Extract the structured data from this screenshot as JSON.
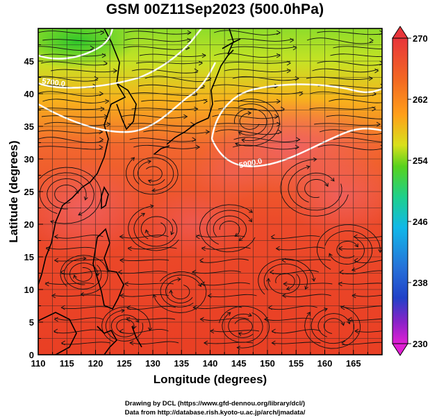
{
  "title": "GSM 00Z11Sep2023 (500.0hPa)",
  "xaxis": {
    "label": "Longitude (degrees)",
    "range": [
      110,
      170
    ],
    "ticks": [
      110,
      115,
      120,
      125,
      130,
      135,
      140,
      145,
      150,
      155,
      160,
      165
    ]
  },
  "yaxis": {
    "label": "Latitude (degrees)",
    "range": [
      0,
      50
    ],
    "ticks": [
      0,
      5,
      10,
      15,
      20,
      25,
      30,
      35,
      40,
      45
    ]
  },
  "colorbar": {
    "range": [
      230,
      270
    ],
    "tick_labels": [
      "270",
      "262",
      "254",
      "246",
      "238",
      "230"
    ],
    "colors": {
      "270": "#e8353a",
      "262": "#ff9f1a",
      "254": "#58d21d",
      "246": "#11b8e8",
      "238": "#2141c8",
      "230": "#e01fd4"
    }
  },
  "contours": [
    {
      "label": "5700.0",
      "color": "#ffffff"
    },
    {
      "label": "5900.0",
      "color": "#ffffff"
    }
  ],
  "credits": {
    "line1": "Drawing by DCL (https://www.gfd-dennou.org/library/dcl/)",
    "line2": "Data from http://database.rish.kyoto-u.ac.jp/arch/jmadata/"
  }
}
